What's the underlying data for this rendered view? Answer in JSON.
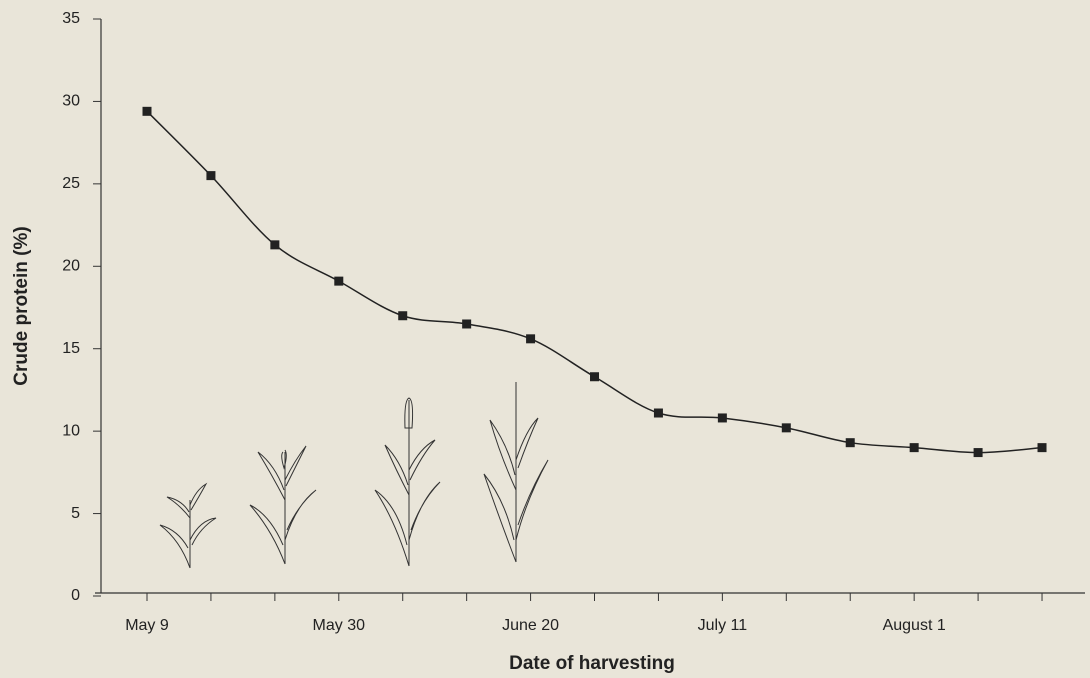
{
  "chart_data": {
    "type": "line",
    "y_label": "Crude protein (%)",
    "x_label": "Date of harvesting",
    "categories": [
      "May 9",
      null,
      null,
      "May 30",
      null,
      null,
      "June 20",
      null,
      null,
      "July 11",
      null,
      null,
      "August 1",
      null,
      null
    ],
    "values": [
      29.4,
      25.5,
      21.3,
      19.1,
      17.0,
      16.5,
      15.6,
      13.3,
      11.1,
      10.8,
      10.2,
      9.3,
      9.0,
      8.7,
      9.0
    ],
    "color": "#222222",
    "ylim": [
      0,
      35
    ],
    "yticks": [
      0,
      5,
      10,
      15,
      20,
      25,
      30,
      35
    ]
  }
}
